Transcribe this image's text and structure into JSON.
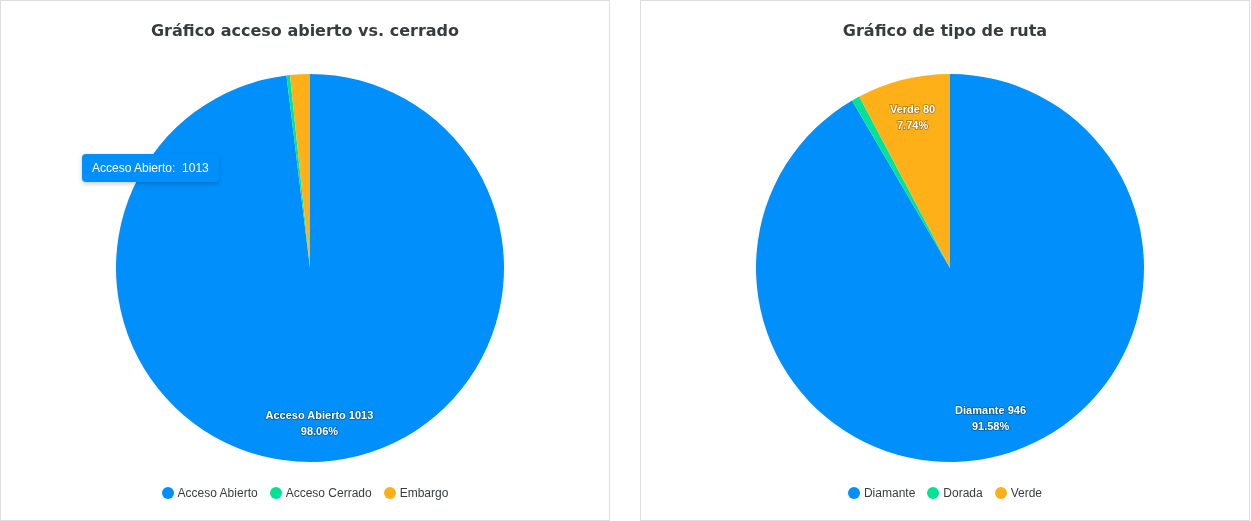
{
  "chart_data": [
    {
      "type": "pie",
      "title": "Gráfico acceso abierto vs. cerrado",
      "categories": [
        "Acceso Abierto",
        "Acceso Cerrado",
        "Embargo"
      ],
      "values": [
        1013,
        3,
        17
      ],
      "colors": [
        "#008ffb",
        "#00e396",
        "#feb019"
      ],
      "value_labels": [
        "Acceso Abierto 1013\n98.06%",
        null,
        null
      ],
      "legend": "bottom",
      "annotations": [
        "Acceso Abierto:  1013"
      ]
    },
    {
      "type": "pie",
      "title": "Gráfico de tipo de ruta",
      "categories": [
        "Diamante",
        "Dorada",
        "Verde"
      ],
      "values": [
        946,
        7,
        80
      ],
      "colors": [
        "#008ffb",
        "#00e396",
        "#feb019"
      ],
      "value_labels": [
        "Diamante 946\n91.58%",
        null,
        "Verde 80\n7.74%"
      ],
      "legend": "bottom"
    }
  ]
}
